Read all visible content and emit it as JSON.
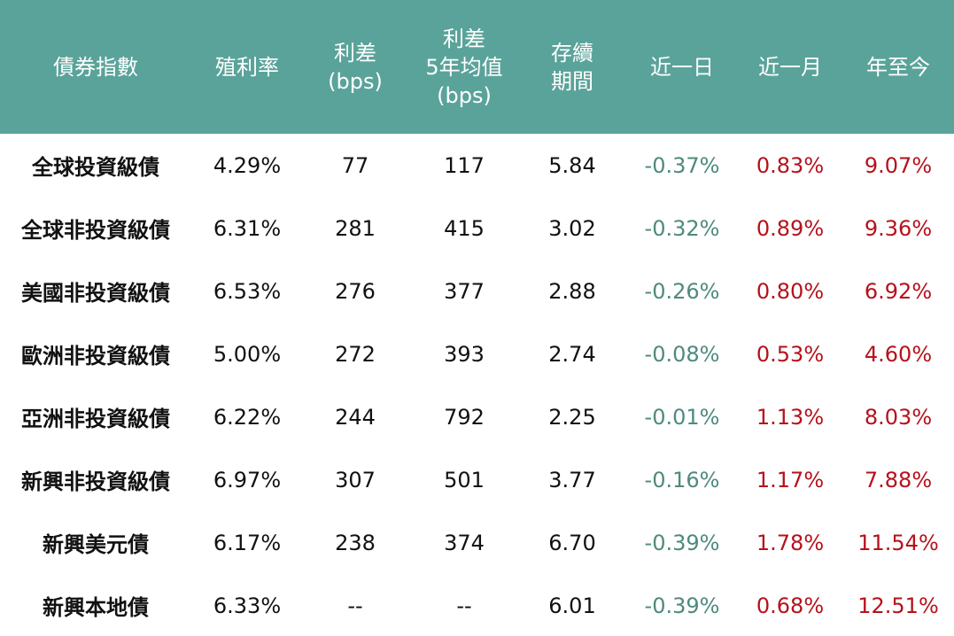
{
  "colors": {
    "header_bg": "#5aa39a",
    "header_text": "#ffffff",
    "negative": "#4e8a7e",
    "positive": "#b5121b",
    "text": "#111111"
  },
  "headers": [
    "債券指數",
    "殖利率",
    "利差\n(bps)",
    "利差\n5年均值\n(bps)",
    "存續\n期間",
    "近一日",
    "近一月",
    "年至今"
  ],
  "rows": [
    {
      "name": "全球投資級債",
      "yield": "4.29%",
      "spread": "77",
      "spread_5y": "117",
      "duration": "5.84",
      "d1": "-0.37%",
      "m1": "0.83%",
      "ytd": "9.07%"
    },
    {
      "name": "全球非投資級債",
      "yield": "6.31%",
      "spread": "281",
      "spread_5y": "415",
      "duration": "3.02",
      "d1": "-0.32%",
      "m1": "0.89%",
      "ytd": "9.36%"
    },
    {
      "name": "美國非投資級債",
      "yield": "6.53%",
      "spread": "276",
      "spread_5y": "377",
      "duration": "2.88",
      "d1": "-0.26%",
      "m1": "0.80%",
      "ytd": "6.92%"
    },
    {
      "name": "歐洲非投資級債",
      "yield": "5.00%",
      "spread": "272",
      "spread_5y": "393",
      "duration": "2.74",
      "d1": "-0.08%",
      "m1": "0.53%",
      "ytd": "4.60%"
    },
    {
      "name": "亞洲非投資級債",
      "yield": "6.22%",
      "spread": "244",
      "spread_5y": "792",
      "duration": "2.25",
      "d1": "-0.01%",
      "m1": "1.13%",
      "ytd": "8.03%"
    },
    {
      "name": "新興非投資級債",
      "yield": "6.97%",
      "spread": "307",
      "spread_5y": "501",
      "duration": "3.77",
      "d1": "-0.16%",
      "m1": "1.17%",
      "ytd": "7.88%"
    },
    {
      "name": "新興美元債",
      "yield": "6.17%",
      "spread": "238",
      "spread_5y": "374",
      "duration": "6.70",
      "d1": "-0.39%",
      "m1": "1.78%",
      "ytd": "11.54%"
    },
    {
      "name": "新興本地債",
      "yield": "6.33%",
      "spread": "--",
      "spread_5y": "--",
      "duration": "6.01",
      "d1": "-0.39%",
      "m1": "0.68%",
      "ytd": "12.51%"
    }
  ]
}
